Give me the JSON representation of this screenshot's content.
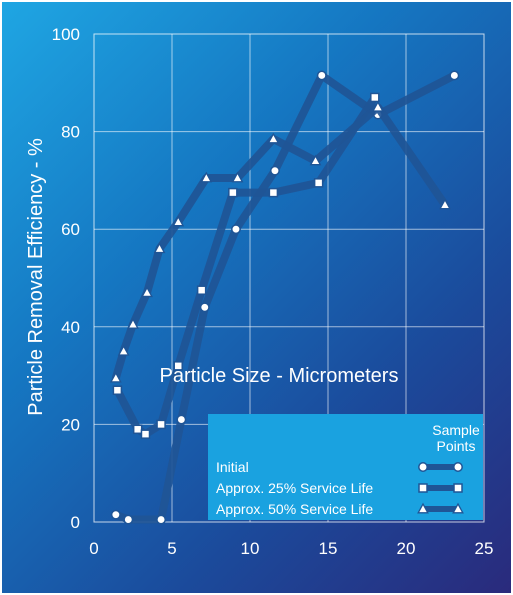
{
  "chart_data": {
    "type": "line",
    "xlabel": "Particle Size - Micrometers",
    "ylabel": "Particle Removal Efficiency - %",
    "xlim": [
      0,
      25
    ],
    "ylim": [
      0,
      100
    ],
    "xticks": [
      "0",
      "5",
      "10",
      "15",
      "20",
      "25"
    ],
    "yticks": [
      "0",
      "20",
      "40",
      "60",
      "80",
      "100"
    ],
    "grid": true,
    "legend": {
      "title_line1": "Sample",
      "title_line2": "Points",
      "placement": "bottom-right"
    },
    "series": [
      {
        "name": "Initial",
        "marker": "circle",
        "x": [
          1.4,
          2.2,
          4.3,
          5.6,
          7.1,
          9.1,
          11.6,
          14.6,
          18.2,
          23.1
        ],
        "y": [
          1.5,
          0.5,
          0.5,
          21,
          44,
          60,
          72,
          91.5,
          83.5,
          91.5
        ]
      },
      {
        "name": "Approx. 25% Service Life",
        "marker": "square",
        "x": [
          1.5,
          2.8,
          3.3,
          4.3,
          5.4,
          6.9,
          8.9,
          11.5,
          14.4,
          18.0
        ],
        "y": [
          27,
          19,
          18,
          20,
          32,
          47.5,
          67.5,
          67.5,
          69.5,
          87
        ]
      },
      {
        "name": "Approx. 50% Service Life",
        "marker": "triangle",
        "x": [
          1.4,
          1.9,
          2.5,
          3.4,
          4.2,
          5.4,
          7.2,
          9.2,
          11.5,
          14.2,
          18.2,
          22.5
        ],
        "y": [
          29.5,
          35,
          40.5,
          47,
          56,
          61.5,
          70.5,
          70.5,
          78.5,
          74,
          85,
          65
        ]
      }
    ]
  }
}
